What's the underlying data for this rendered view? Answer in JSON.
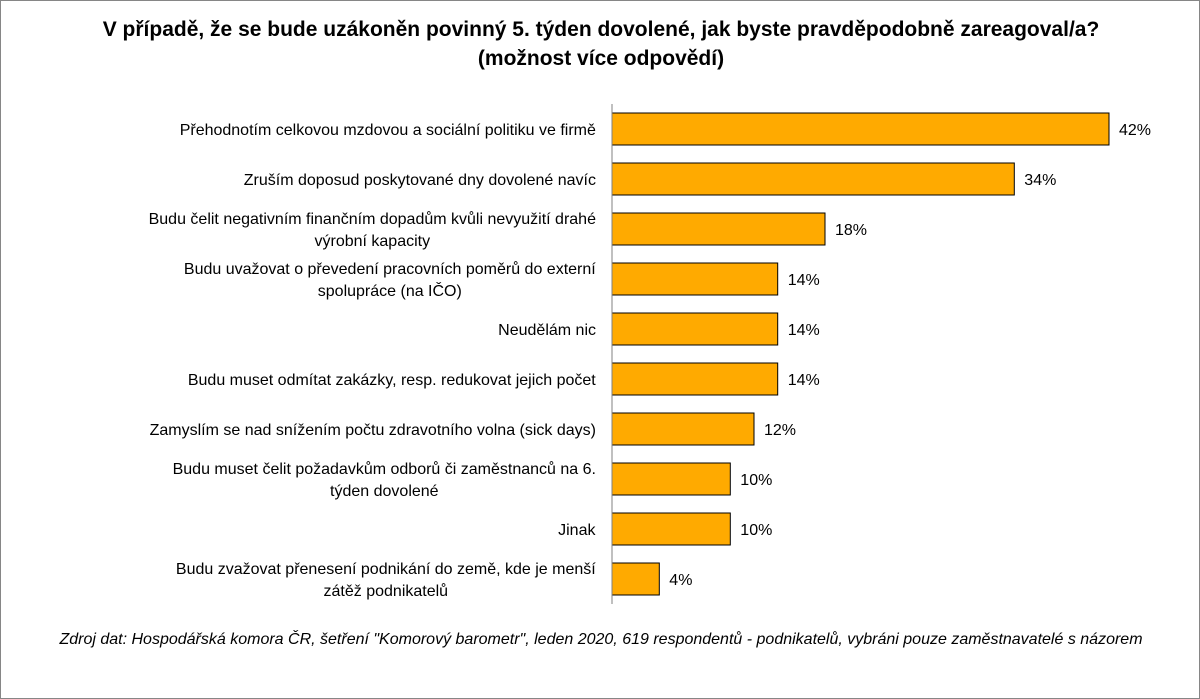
{
  "chart_data": {
    "type": "bar",
    "orientation": "horizontal",
    "title": "V případě, že se bude uzákoněn povinný 5. týden dovolené, jak byste pravděpodobně zareagoval/a? (možnost více odpovědí)",
    "categories": [
      [
        "Přehodnotím celkovou mzdovou a sociální politiku ve firmě"
      ],
      [
        "Zruším doposud poskytované dny dovolené navíc"
      ],
      [
        "Budu čelit negativním finančním dopadům kvůli nevyužití drahé",
        "výrobní kapacity"
      ],
      [
        "Budu uvažovat o převedení pracovních poměrů do externí",
        "spolupráce (na IČO)"
      ],
      [
        "Neudělám nic"
      ],
      [
        "Budu muset odmítat zakázky, resp. redukovat jejich počet"
      ],
      [
        "Zamyslím se nad snížením počtu zdravotního volna (sick days)"
      ],
      [
        "Budu muset čelit požadavkům odborů či zaměstnanců na 6.",
        "týden dovolené"
      ],
      [
        "Jinak"
      ],
      [
        "Budu zvažovat přenesení podnikání do země, kde je menší",
        "zátěž podnikatelů"
      ]
    ],
    "values": [
      42,
      34,
      18,
      14,
      14,
      14,
      12,
      10,
      10,
      4
    ],
    "value_labels": [
      "42%",
      "34%",
      "18%",
      "14%",
      "14%",
      "14%",
      "12%",
      "10%",
      "10%",
      "4%"
    ],
    "unit": "%",
    "xlim": [
      0,
      45
    ],
    "grid": false,
    "legend": "none",
    "colors": {
      "bar_fill": "#FFAA00",
      "bar_stroke": "#000000",
      "axis": "#808080"
    }
  },
  "source_note": "Zdroj dat: Hospodářská komora ČR, šetření \"Komorový barometr\", leden 2020, 619 respondentů - podnikatelů, vybráni pouze zaměstnavatelé s názorem"
}
